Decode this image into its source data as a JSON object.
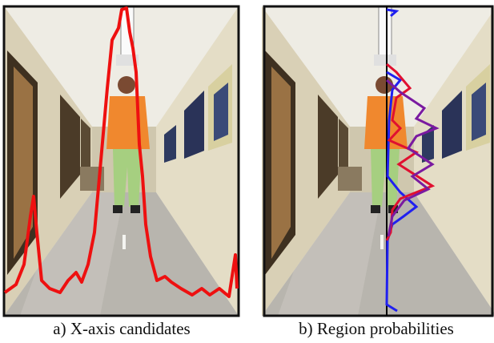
{
  "figure": {
    "panels": [
      {
        "caption": "a) X-axis candidates"
      },
      {
        "caption": "b) Region probabilities"
      }
    ]
  }
}
